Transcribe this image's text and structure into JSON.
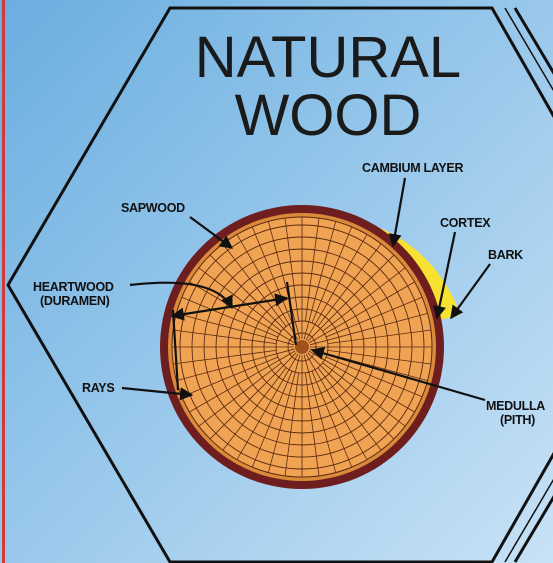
{
  "title": {
    "line1": "NATURAL",
    "line2": "WOOD"
  },
  "labels": {
    "cambium": "CAMBIUM LAYER",
    "sapwood": "SAPWOOD",
    "cortex": "CORTEX",
    "bark": "BARK",
    "heartwood": [
      "HEARTWOOD",
      "(DURAMEN)"
    ],
    "rays": "RAYS",
    "medulla": [
      "MEDULLA",
      "(PITH)"
    ]
  }
}
